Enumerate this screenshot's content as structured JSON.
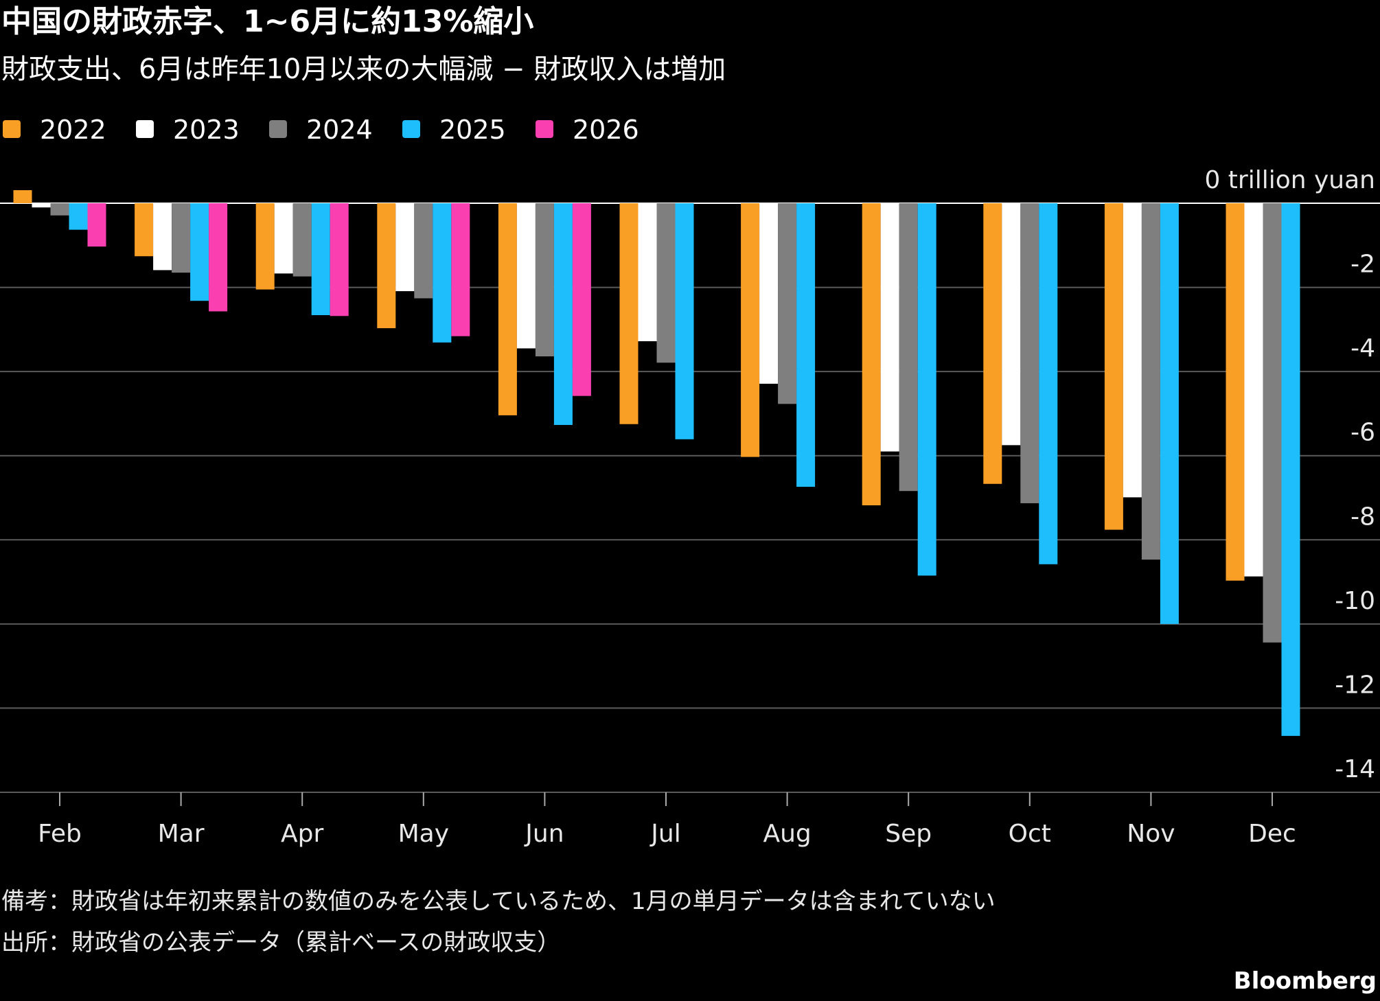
{
  "chart_data": {
    "type": "bar",
    "title": "中国の財政赤字、1~6月に約13%縮小",
    "subtitle": "財政支出、6月は昨年10月以来の大幅減 − 財政収入は増加",
    "categories": [
      "Feb",
      "Mar",
      "Apr",
      "May",
      "Jun",
      "Jul",
      "Aug",
      "Sep",
      "Oct",
      "Nov",
      "Dec"
    ],
    "series": [
      {
        "name": "2022",
        "color": "#f99f26",
        "values": [
          0.31,
          -1.26,
          -2.05,
          -2.97,
          -5.04,
          -5.25,
          -6.03,
          -7.18,
          -6.67,
          -7.76,
          -8.97
        ]
      },
      {
        "name": "2023",
        "color": "#ffffff",
        "values": [
          -0.1,
          -1.59,
          -1.67,
          -2.09,
          -3.45,
          -3.28,
          -4.29,
          -5.9,
          -5.75,
          -6.99,
          -8.87
        ]
      },
      {
        "name": "2024",
        "color": "#7f7f7f",
        "values": [
          -0.29,
          -1.65,
          -1.74,
          -2.26,
          -3.64,
          -3.79,
          -4.77,
          -6.84,
          -7.13,
          -8.47,
          -10.44
        ]
      },
      {
        "name": "2025",
        "color": "#1ebdfc",
        "values": [
          -0.63,
          -2.32,
          -2.66,
          -3.31,
          -5.27,
          -5.61,
          -6.74,
          -8.85,
          -8.58,
          -10.0,
          -12.66
        ]
      },
      {
        "name": "2026",
        "color": "#fa3fb0",
        "values": [
          -1.03,
          -2.57,
          -2.68,
          -3.16,
          -4.58,
          null,
          null,
          null,
          null,
          null,
          null
        ]
      }
    ],
    "ylim": [
      -14,
      0
    ],
    "yticks": [
      {
        "value": 0,
        "label": "0 trillion yuan"
      },
      -2,
      -4,
      -6,
      -8,
      -10,
      -12,
      -14
    ],
    "grid": true,
    "legend": "top-left",
    "notes": "備考：財政省は年初来累計の数値のみを公表しているため、1月の単月データは含まれていない",
    "source": "出所：財政省の公表データ（累計ベースの財政収支）",
    "brand": "Bloomberg"
  }
}
